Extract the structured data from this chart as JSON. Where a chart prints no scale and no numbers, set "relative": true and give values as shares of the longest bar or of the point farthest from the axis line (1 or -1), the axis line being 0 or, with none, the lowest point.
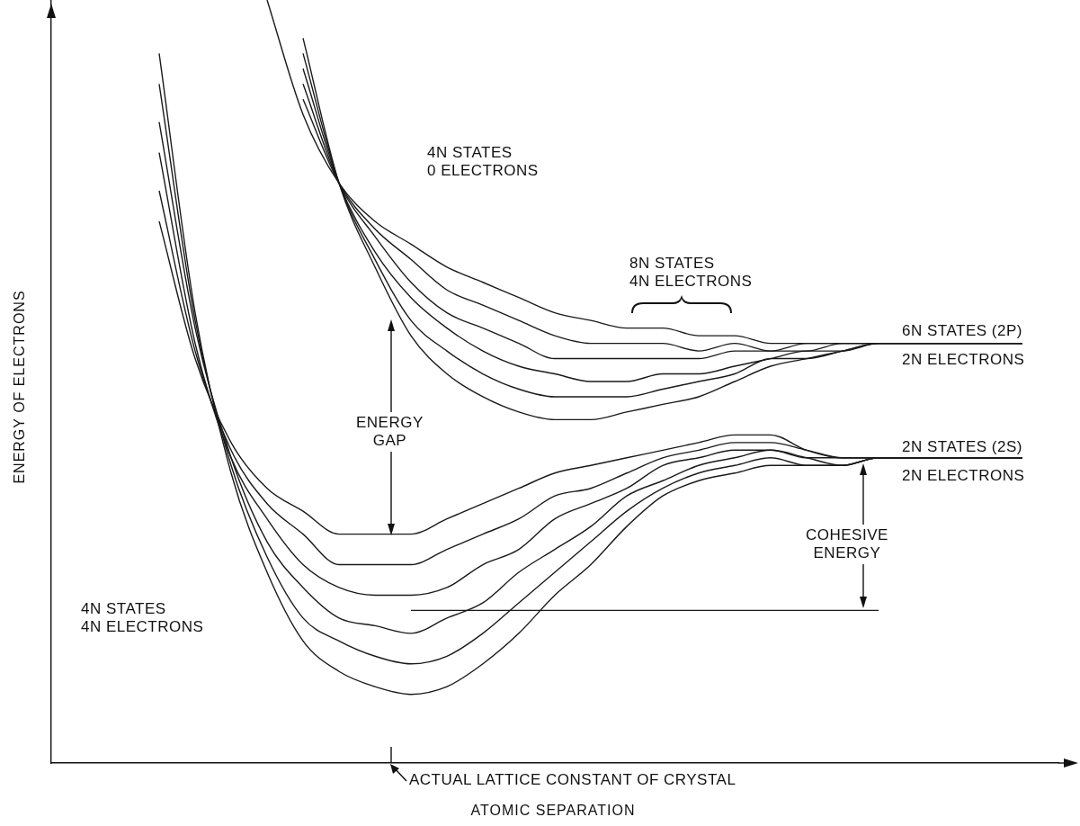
{
  "chart_data": {
    "type": "line",
    "relative": true,
    "grid": false,
    "legend": false,
    "marker": "none",
    "xlabel": "ATOMIC SEPARATION",
    "ylabel": "ENERGY OF ELECTRONS",
    "categories": [
      null,
      null,
      null,
      null,
      null,
      null,
      null,
      null,
      null,
      null,
      null,
      null,
      null,
      null,
      null,
      null,
      null,
      null,
      null,
      null,
      null,
      null,
      null,
      null,
      null,
      null,
      null,
      null,
      null
    ],
    "series": [
      {
        "color": "#1a1a1a",
        "values": [
          null,
          null,
          null,
          0.71,
          0.53,
          0.42,
          0.36,
          0.33,
          0.3,
          0.3,
          0.3,
          0.32,
          0.34,
          0.36,
          0.38,
          0.39,
          0.4,
          0.41,
          0.42,
          0.43,
          0.43,
          0.41,
          0.4,
          0.4,
          0.4,
          0.4,
          0.4,
          0.4,
          null
        ]
      },
      {
        "color": "#1a1a1a",
        "values": [
          null,
          null,
          null,
          0.75,
          0.54,
          0.41,
          0.34,
          0.3,
          0.26,
          0.26,
          0.26,
          0.28,
          0.3,
          0.32,
          0.35,
          0.36,
          0.38,
          0.4,
          0.41,
          0.42,
          0.42,
          0.41,
          0.4,
          0.4,
          0.4,
          0.4,
          0.4,
          0.4,
          null
        ]
      },
      {
        "color": "#1a1a1a",
        "values": [
          null,
          null,
          null,
          0.8,
          0.55,
          0.4,
          0.32,
          0.26,
          0.23,
          0.22,
          0.22,
          0.23,
          0.26,
          0.28,
          0.32,
          0.34,
          0.36,
          0.39,
          0.4,
          0.41,
          0.41,
          0.4,
          0.4,
          0.4,
          0.4,
          0.4,
          0.4,
          0.4,
          null
        ]
      },
      {
        "color": "#1a1a1a",
        "values": [
          null,
          null,
          null,
          0.84,
          0.57,
          0.4,
          0.29,
          0.23,
          0.19,
          0.18,
          0.17,
          0.19,
          0.21,
          0.25,
          0.28,
          0.31,
          0.35,
          0.37,
          0.39,
          0.4,
          0.41,
          0.4,
          0.39,
          0.4,
          0.4,
          0.4,
          0.4,
          0.4,
          null
        ]
      },
      {
        "color": "#1a1a1a",
        "values": [
          null,
          null,
          null,
          0.89,
          0.58,
          0.39,
          0.27,
          0.19,
          0.16,
          0.14,
          0.13,
          0.14,
          0.17,
          0.21,
          0.25,
          0.29,
          0.33,
          0.36,
          0.38,
          0.39,
          0.4,
          0.39,
          0.39,
          0.4,
          0.4,
          0.4,
          0.4,
          0.4,
          null
        ]
      },
      {
        "color": "#1a1a1a",
        "values": [
          null,
          null,
          null,
          0.93,
          0.59,
          0.38,
          0.25,
          0.16,
          0.12,
          0.1,
          0.09,
          0.1,
          0.13,
          0.17,
          0.22,
          0.26,
          0.31,
          0.35,
          0.37,
          0.38,
          0.39,
          0.39,
          0.39,
          0.4,
          0.4,
          0.4,
          0.4,
          0.4,
          null
        ]
      },
      {
        "color": "#1a1a1a",
        "values": [
          null,
          null,
          null,
          null,
          null,
          null,
          1.0,
          0.85,
          0.76,
          0.71,
          0.68,
          0.65,
          0.63,
          0.61,
          0.59,
          0.58,
          0.57,
          0.57,
          0.56,
          0.56,
          0.55,
          0.55,
          0.55,
          0.55,
          0.55,
          0.55,
          0.55,
          0.55,
          null
        ]
      },
      {
        "color": "#1a1a1a",
        "values": [
          null,
          null,
          null,
          null,
          null,
          null,
          null,
          0.87,
          0.76,
          0.7,
          0.66,
          0.62,
          0.6,
          0.58,
          0.56,
          0.55,
          0.55,
          0.55,
          0.54,
          0.55,
          0.54,
          0.55,
          0.55,
          0.55,
          0.55,
          0.55,
          0.55,
          0.55,
          null
        ]
      },
      {
        "color": "#1a1a1a",
        "values": [
          null,
          null,
          null,
          null,
          null,
          null,
          null,
          0.89,
          0.76,
          0.69,
          0.63,
          0.59,
          0.57,
          0.55,
          0.53,
          0.53,
          0.53,
          0.53,
          0.53,
          0.54,
          0.54,
          0.54,
          0.55,
          0.55,
          0.55,
          0.55,
          0.55,
          0.55,
          null
        ]
      },
      {
        "color": "#1a1a1a",
        "values": [
          null,
          null,
          null,
          null,
          null,
          null,
          null,
          0.91,
          0.76,
          0.67,
          0.61,
          0.57,
          0.54,
          0.52,
          0.51,
          0.5,
          0.5,
          0.51,
          0.51,
          0.52,
          0.53,
          0.54,
          0.54,
          0.55,
          0.55,
          0.55,
          0.55,
          0.55,
          null
        ]
      },
      {
        "color": "#1a1a1a",
        "values": [
          null,
          null,
          null,
          null,
          null,
          null,
          null,
          0.93,
          0.76,
          0.66,
          0.58,
          0.54,
          0.51,
          0.49,
          0.48,
          0.48,
          0.48,
          0.49,
          0.5,
          0.51,
          0.53,
          0.53,
          0.54,
          0.55,
          0.55,
          0.55,
          0.55,
          0.55,
          null
        ]
      },
      {
        "color": "#1a1a1a",
        "values": [
          null,
          null,
          null,
          null,
          null,
          null,
          null,
          0.95,
          0.76,
          0.65,
          0.56,
          0.51,
          0.48,
          0.46,
          0.45,
          0.45,
          0.46,
          0.47,
          0.48,
          0.5,
          0.52,
          0.53,
          0.54,
          0.55,
          0.55,
          0.55,
          0.55,
          0.55,
          null
        ]
      },
      {
        "color": "#1a1a1a",
        "values": [
          null,
          null,
          null,
          null,
          null,
          null,
          null,
          null,
          null,
          null,
          0.2,
          0.2,
          0.2,
          0.2,
          0.2,
          0.2,
          0.2,
          0.2,
          0.2,
          0.2,
          0.2,
          0.2,
          0.2,
          0.2,
          null,
          null,
          null,
          null,
          null
        ]
      }
    ],
    "annotations": [
      "4N STATES\n0 ELECTRONS",
      "8N STATES\n4N ELECTRONS",
      "6N STATES (2P)",
      "2N ELECTRONS",
      "2N STATES (2S)",
      "2N ELECTRONS",
      "ENERGY\nGAP",
      "COHESIVE\nENERGY",
      "4N STATES\n4N ELECTRONS",
      "ACTUAL LATTICE CONSTANT OF CRYSTAL"
    ]
  }
}
